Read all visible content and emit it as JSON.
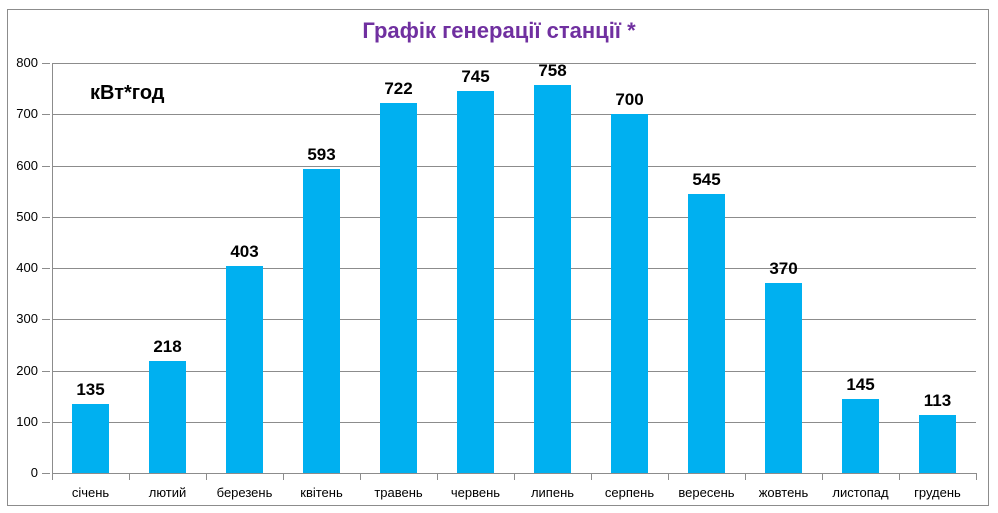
{
  "chart_data": {
    "type": "bar",
    "title": "Графік генерації станції *",
    "unit_label": "кВт*год",
    "xlabel": "",
    "ylabel": "кВт*год",
    "ylim": [
      0,
      800
    ],
    "yticks": [
      0,
      100,
      200,
      300,
      400,
      500,
      600,
      700,
      800
    ],
    "grid": true,
    "legend": "none",
    "bar_color": "#00b0f0",
    "title_color": "#7030a0",
    "categories": [
      "січень",
      "лютий",
      "березень",
      "квітень",
      "травень",
      "червень",
      "липень",
      "серпень",
      "вересень",
      "жовтень",
      "листопад",
      "грудень"
    ],
    "values": [
      135,
      218,
      403,
      593,
      722,
      745,
      758,
      700,
      545,
      370,
      145,
      113
    ],
    "data_labels": [
      "135",
      "218",
      "403",
      "593",
      "722",
      "745",
      "758",
      "700",
      "545",
      "370",
      "145",
      "113"
    ]
  }
}
